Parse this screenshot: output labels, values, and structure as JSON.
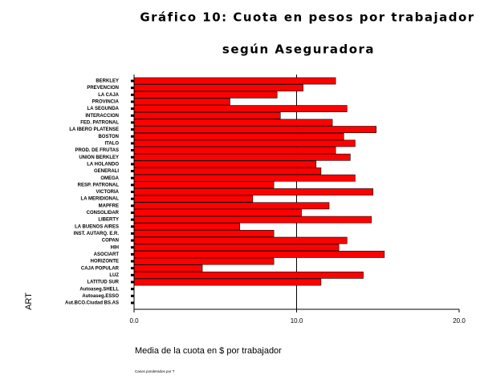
{
  "chart_data": {
    "type": "bar",
    "orientation": "horizontal",
    "title": "Gráfico 10: Cuota en pesos por trabajador",
    "subtitle": "según Aseguradora",
    "x_label": "Media de la cuota en $ por trabajador",
    "y_label": "ART",
    "footnote": "Casos ponderados por T",
    "categories": [
      "BERKLEY",
      "PREVENCION",
      "LA CAJA",
      "PROVINCIA",
      "LA SEGUNDA",
      "INTERACCION",
      "FED. PATRONAL",
      "LA IBERO PLATENSE",
      "BOSTON",
      "ITALO",
      "PROD. DE FRUTAS",
      "UNION BERKLEY",
      "LA HOLANDO",
      "GENERALI",
      "OMEGA",
      "RESP. PATRONAL",
      "VICTORIA",
      "LA MERIDIONAL",
      "MAPFRE",
      "CONSOLIDAR",
      "LIBERTY",
      "LA BUENOS AIRES",
      "INST. AUTARQ. E.R.",
      "COPAN",
      "HIH",
      "ASOCIART",
      "HORIZONTE",
      "CAJA POPULAR",
      "LUZ",
      "LATITUD SUR",
      "Autoaseg.SHELL",
      "Autoaseg.ESSO",
      "Aut.BCO.Ciudad BS.AS"
    ],
    "values": [
      12.4,
      10.4,
      8.8,
      5.9,
      13.1,
      9.0,
      12.2,
      14.9,
      12.9,
      13.6,
      12.4,
      13.3,
      11.2,
      11.5,
      13.6,
      8.6,
      14.7,
      7.3,
      12.0,
      10.3,
      14.6,
      6.5,
      8.6,
      13.1,
      12.6,
      15.4,
      8.6,
      4.2,
      14.1,
      11.5,
      0,
      0,
      0
    ],
    "color": "#ff0000",
    "xlim": [
      0,
      20
    ],
    "xticks": [
      {
        "value": 0,
        "label": "0.0"
      },
      {
        "value": 10,
        "label": "10.0"
      },
      {
        "value": 20,
        "label": "20.0"
      }
    ],
    "grid": true
  }
}
